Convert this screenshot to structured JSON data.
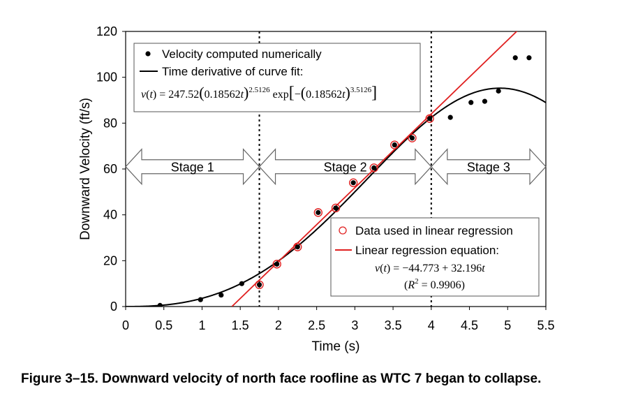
{
  "chart_data": {
    "type": "scatter",
    "xlabel": "Time (s)",
    "ylabel": "Downward Velocity (ft/s)",
    "xlim": [
      0,
      5.5
    ],
    "ylim": [
      0,
      120
    ],
    "xticks": [
      "0",
      "0.5",
      "1",
      "1.5",
      "2",
      "2.5",
      "3",
      "3.5",
      "4",
      "4.5",
      "5",
      "5.5"
    ],
    "yticks": [
      "0",
      "20",
      "40",
      "60",
      "80",
      "100",
      "120"
    ],
    "grid": false,
    "series": [
      {
        "name": "Velocity computed numerically",
        "kind": "points",
        "color": "#000000",
        "x": [
          0.45,
          0.98,
          1.25,
          1.52,
          1.75,
          1.98,
          2.25,
          2.52,
          2.75,
          2.98,
          3.25,
          3.52,
          3.75,
          3.98,
          4.25,
          4.52,
          4.7,
          4.88,
          5.1,
          5.28
        ],
        "y": [
          0.5,
          3.0,
          5.0,
          10.0,
          9.5,
          18.5,
          26.0,
          41.0,
          43.0,
          54.0,
          60.5,
          70.5,
          73.5,
          82.0,
          82.5,
          89.0,
          89.5,
          94.0,
          108.5,
          108.5
        ]
      },
      {
        "name": "Time derivative of curve fit:",
        "kind": "curve",
        "color": "#000000",
        "equation": "v(t) = 247.52(0.18562t)^2.5126 exp[−(0.18562t)^3.5126]",
        "params": {
          "A": 247.52,
          "lambda": 0.18562,
          "p": 2.5126,
          "q": 3.5126
        }
      },
      {
        "name": "Data used in linear regression",
        "kind": "open-circles",
        "color": "#e02020",
        "x": [
          1.75,
          1.98,
          2.25,
          2.52,
          2.75,
          2.98,
          3.25,
          3.52,
          3.75,
          3.98
        ],
        "y": [
          9.5,
          18.5,
          26.0,
          41.0,
          43.0,
          54.0,
          60.5,
          70.5,
          73.5,
          82.0
        ]
      },
      {
        "name": "Linear regression equation:",
        "kind": "line",
        "color": "#e02020",
        "equation": "v(t) = −44.773 + 32.196t",
        "r_squared": "(R² = 0.9906)",
        "intercept": -44.773,
        "slope": 32.196
      }
    ],
    "stage_boundaries": [
      1.75,
      4.0
    ],
    "stages": [
      {
        "label": "Stage 1",
        "x_start": 0,
        "x_end": 1.75
      },
      {
        "label": "Stage 2",
        "x_start": 1.75,
        "x_end": 4.0
      },
      {
        "label": "Stage 3",
        "x_start": 4.0,
        "x_end": 5.5
      }
    ],
    "stage_arrow_y": 61,
    "legends": [
      {
        "placement": "top-left",
        "entries": [
          "Velocity computed numerically",
          "Time derivative of curve fit:"
        ],
        "equation": "v(t) = 247.52(0.18562t)^2.5126 exp[−(0.18562t)^3.5126]"
      },
      {
        "placement": "bottom-right",
        "entries": [
          "Data used in linear regression",
          "Linear regression equation:"
        ],
        "equation": "v(t) = −44.773 + 32.196t",
        "r_squared": "(R² = 0.9906)"
      }
    ]
  },
  "caption": "Figure 3–15.  Downward velocity of north face roofline as WTC 7 began to collapse."
}
